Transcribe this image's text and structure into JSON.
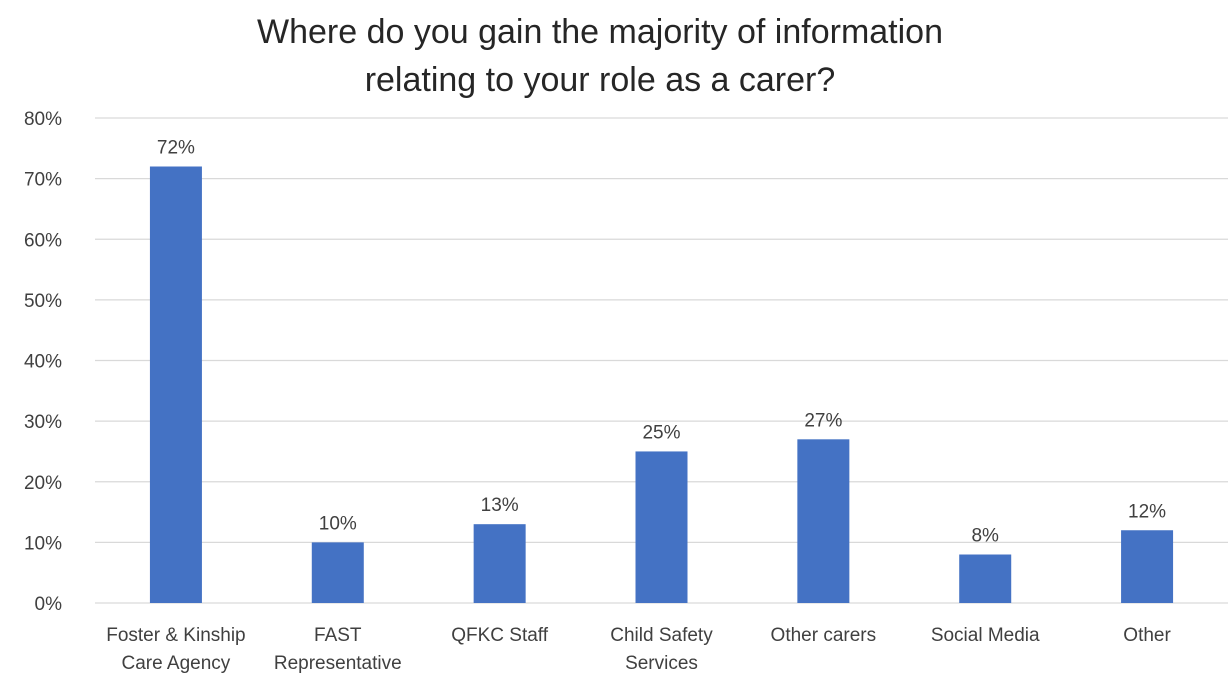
{
  "chart_data": {
    "type": "bar",
    "title_lines": [
      "Where do you gain the majority of information",
      "relating to your role as a carer?"
    ],
    "categories": [
      [
        "Foster & Kinship",
        "Care Agency"
      ],
      [
        "FAST",
        "Representative"
      ],
      [
        "QFKC Staff"
      ],
      [
        "Child Safety",
        "Services"
      ],
      [
        "Other carers"
      ],
      [
        "Social Media"
      ],
      [
        "Other"
      ]
    ],
    "values": [
      72,
      10,
      13,
      25,
      27,
      8,
      12
    ],
    "data_labels": [
      "72%",
      "10%",
      "13%",
      "25%",
      "27%",
      "8%",
      "12%"
    ],
    "ylim": [
      0,
      80
    ],
    "yticks": [
      0,
      10,
      20,
      30,
      40,
      50,
      60,
      70,
      80
    ],
    "ytick_labels": [
      "0%",
      "10%",
      "20%",
      "30%",
      "40%",
      "50%",
      "60%",
      "70%",
      "80%"
    ],
    "xlabel": "",
    "ylabel": "",
    "grid": true,
    "legend": "none",
    "bar_color": "#4472C4",
    "grid_color": "#D9D9D9"
  }
}
